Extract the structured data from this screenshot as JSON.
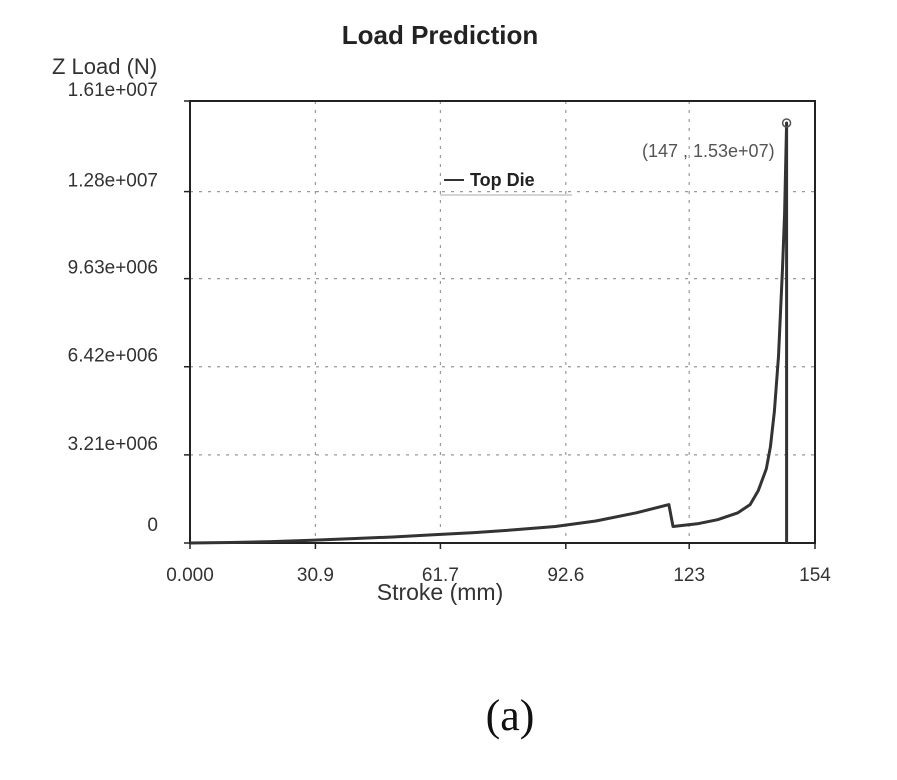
{
  "chart_data": {
    "type": "line",
    "title": "Load Prediction",
    "ylabel": "Z Load (N)",
    "xlabel": "Stroke (mm)",
    "xlim": [
      0,
      154
    ],
    "ylim": [
      0,
      16100000
    ],
    "x_tick_labels": [
      "0.000",
      "30.9",
      "61.7",
      "92.6",
      "123",
      "154"
    ],
    "x_tick_values": [
      0,
      30.9,
      61.7,
      92.6,
      123,
      154
    ],
    "y_tick_labels": [
      "0",
      "3.21e+006",
      "6.42e+006",
      "9.63e+006",
      "1.28e+007",
      "1.61e+007"
    ],
    "y_tick_values": [
      0,
      3210000,
      6420000,
      9630000,
      12800000,
      16100000
    ],
    "grid": true,
    "legend": "top-center",
    "series": [
      {
        "name": "Top Die",
        "x": [
          0,
          10,
          20,
          30,
          40,
          50,
          60,
          70,
          80,
          90,
          100,
          110,
          118,
          119,
          125,
          130,
          135,
          138,
          140,
          142,
          143,
          144,
          145,
          146,
          146.5,
          147
        ],
        "y": [
          0,
          20000,
          50000,
          100000,
          160000,
          220000,
          300000,
          380000,
          480000,
          600000,
          800000,
          1100000,
          1400000,
          600000,
          700000,
          850000,
          1100000,
          1400000,
          1900000,
          2700000,
          3500000,
          4800000,
          6800000,
          10000000,
          12000000,
          15300000
        ]
      }
    ],
    "annotation": {
      "text": "(147 , 1.53e+07)",
      "x": 147,
      "y": 15300000
    }
  },
  "caption": "(a)"
}
